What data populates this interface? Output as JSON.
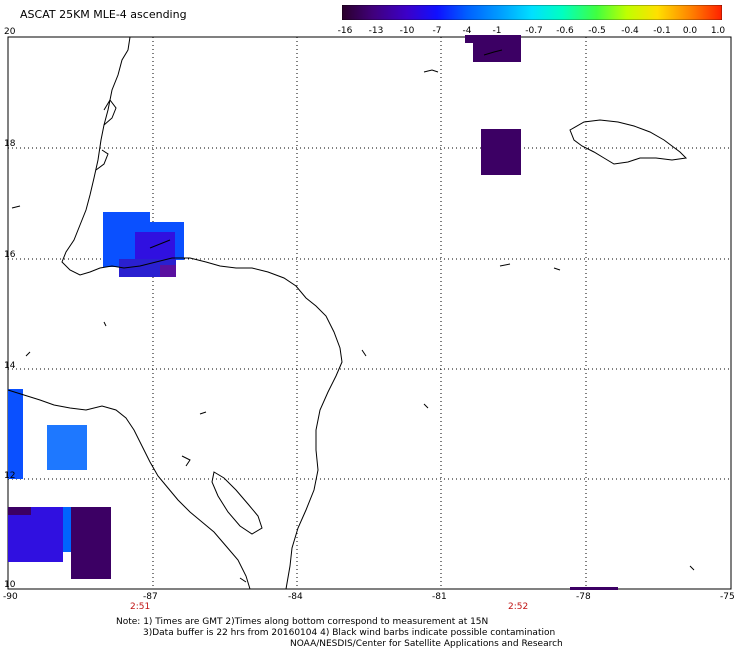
{
  "title": "ASCAT 25KM MLE-4 ascending",
  "colorbar": {
    "labels": [
      "-16",
      "-13",
      "-10",
      "-7",
      "-4",
      "-1",
      "-0.7",
      "-0.6",
      "-0.5",
      "-0.4",
      "-0.1",
      "0.0",
      "1.0"
    ],
    "colors": [
      "#2a002a",
      "#40007a",
      "#3c00c8",
      "#1010ff",
      "#0060ff",
      "#00a0ff",
      "#00e0ff",
      "#00ffc0",
      "#40ff40",
      "#c0ff00",
      "#ffe000",
      "#ff8000",
      "#ff2000"
    ]
  },
  "axes": {
    "lat_labels": [
      "20",
      "18",
      "16",
      "14",
      "12",
      "10"
    ],
    "lon_labels": [
      "-90",
      "-87",
      "-84",
      "-81",
      "-78",
      "-75"
    ]
  },
  "times": {
    "left": "2:51",
    "right": "2:52"
  },
  "notes": {
    "line1": "Note: 1) Times are GMT 2)Times along bottom correspond to measurement at 15N",
    "line2": "3)Data buffer is 22 hrs from 20160104 4) Black wind barbs indicate possible contamination",
    "line3": "NOAA/NESDIS/Center for Satellite Applications and Research"
  },
  "palette": {
    "dark_purple": "#3c0064",
    "blue": "#0a50ff",
    "bright_blue": "#0064ff",
    "medium_blue": "#1e78ff",
    "indigo": "#3010e0",
    "violet": "#5a10c8"
  }
}
